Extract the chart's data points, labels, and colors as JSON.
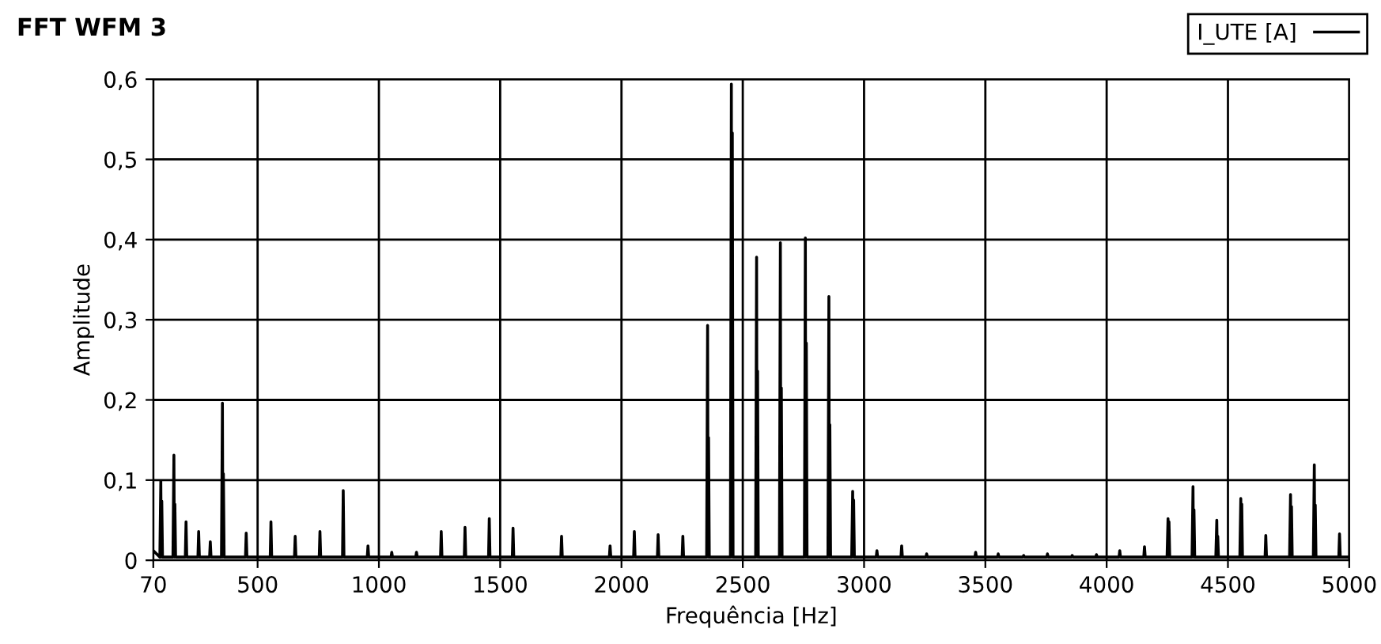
{
  "chart_data": {
    "type": "line",
    "title": "FFT WFM 3",
    "xlabel": "Frequência [Hz]",
    "ylabel": "Amplitude",
    "xlim": [
      70,
      5000
    ],
    "xticks": [
      70,
      500,
      1000,
      1500,
      2000,
      2500,
      3000,
      3500,
      4000,
      4500,
      5000
    ],
    "ylim": [
      0,
      0.6
    ],
    "yticks": [
      0,
      {
        "value": 0.1,
        "label": "0,1"
      },
      {
        "value": 0.2,
        "label": "0,2"
      },
      {
        "value": 0.3,
        "label": "0,3"
      },
      {
        "value": 0.4,
        "label": "0,4"
      },
      {
        "value": 0.5,
        "label": "0,5"
      },
      {
        "value": 0.6,
        "label": "0,6"
      }
    ],
    "grid": true,
    "legend": "top right",
    "marker": "none",
    "line_style": "solid",
    "series": [
      {
        "name": "I_UTE [A]",
        "color": "#000000",
        "x": [
          70,
          97,
          101,
          103,
          105,
          108,
          151,
          155,
          157,
          159,
          162,
          202,
          205,
          208,
          254,
          257,
          260,
          302,
          305,
          308,
          351,
          355,
          357,
          359,
          362,
          450,
          453,
          456,
          552,
          555,
          558,
          652,
          655,
          658,
          754,
          757,
          760,
          850,
          853,
          856,
          952,
          955,
          958,
          1050,
          1053,
          1056,
          1152,
          1155,
          1158,
          1254,
          1257,
          1260,
          1352,
          1355,
          1358,
          1452,
          1455,
          1458,
          1550,
          1553,
          1556,
          1750,
          1753,
          1756,
          1950,
          1953,
          1956,
          2050,
          2053,
          2056,
          2148,
          2151,
          2154,
          2250,
          2253,
          2256,
          2351,
          2355,
          2357,
          2359,
          2362,
          2449,
          2453,
          2455,
          2457,
          2460,
          2553,
          2557,
          2559,
          2561,
          2564,
          2651,
          2655,
          2657,
          2659,
          2662,
          2754,
          2758,
          2760,
          2762,
          2765,
          2851,
          2855,
          2857,
          2859,
          2862,
          2949,
          2953,
          2955,
          2957,
          2960,
          3050,
          3053,
          3056,
          3152,
          3155,
          3158,
          3255,
          3258,
          3261,
          3457,
          3460,
          3463,
          3550,
          3553,
          3556,
          3655,
          3658,
          3661,
          3753,
          3756,
          3759,
          3855,
          3858,
          3861,
          3955,
          3958,
          3961,
          4051,
          4054,
          4057,
          4153,
          4156,
          4159,
          4249,
          4253,
          4255,
          4257,
          4260,
          4352,
          4356,
          4358,
          4360,
          4363,
          4450,
          4454,
          4456,
          4458,
          4461,
          4549,
          4553,
          4555,
          4557,
          4560,
          4653,
          4656,
          4659,
          4754,
          4758,
          4760,
          4762,
          4765,
          4852,
          4856,
          4858,
          4860,
          4863,
          4957,
          4960,
          4963,
          5000
        ],
        "values": [
          0.012,
          0.004,
          0.099,
          0.004,
          0.074,
          0.004,
          0.004,
          0.131,
          0.004,
          0.07,
          0.004,
          0.004,
          0.048,
          0.004,
          0.004,
          0.036,
          0.004,
          0.004,
          0.023,
          0.004,
          0.004,
          0.196,
          0.004,
          0.108,
          0.004,
          0.004,
          0.034,
          0.004,
          0.004,
          0.048,
          0.004,
          0.004,
          0.03,
          0.004,
          0.004,
          0.036,
          0.004,
          0.004,
          0.087,
          0.004,
          0.004,
          0.018,
          0.004,
          0.004,
          0.01,
          0.004,
          0.004,
          0.01,
          0.004,
          0.004,
          0.036,
          0.004,
          0.004,
          0.041,
          0.004,
          0.004,
          0.052,
          0.004,
          0.004,
          0.04,
          0.004,
          0.004,
          0.03,
          0.004,
          0.004,
          0.018,
          0.004,
          0.004,
          0.036,
          0.004,
          0.004,
          0.032,
          0.004,
          0.004,
          0.03,
          0.004,
          0.004,
          0.293,
          0.004,
          0.153,
          0.004,
          0.004,
          0.594,
          0.004,
          0.533,
          0.004,
          0.004,
          0.378,
          0.004,
          0.236,
          0.004,
          0.004,
          0.396,
          0.004,
          0.215,
          0.004,
          0.004,
          0.402,
          0.004,
          0.271,
          0.004,
          0.004,
          0.329,
          0.004,
          0.169,
          0.004,
          0.004,
          0.086,
          0.004,
          0.075,
          0.004,
          0.004,
          0.012,
          0.004,
          0.004,
          0.018,
          0.004,
          0.004,
          0.008,
          0.004,
          0.004,
          0.01,
          0.004,
          0.004,
          0.008,
          0.004,
          0.004,
          0.006,
          0.004,
          0.004,
          0.008,
          0.004,
          0.004,
          0.006,
          0.004,
          0.004,
          0.007,
          0.004,
          0.004,
          0.012,
          0.004,
          0.004,
          0.017,
          0.004,
          0.004,
          0.052,
          0.004,
          0.048,
          0.004,
          0.004,
          0.092,
          0.004,
          0.063,
          0.004,
          0.004,
          0.05,
          0.004,
          0.03,
          0.004,
          0.004,
          0.077,
          0.004,
          0.07,
          0.004,
          0.004,
          0.031,
          0.004,
          0.004,
          0.082,
          0.004,
          0.067,
          0.004,
          0.004,
          0.119,
          0.004,
          0.069,
          0.004,
          0.004,
          0.033,
          0.004,
          0.004
        ]
      }
    ]
  }
}
